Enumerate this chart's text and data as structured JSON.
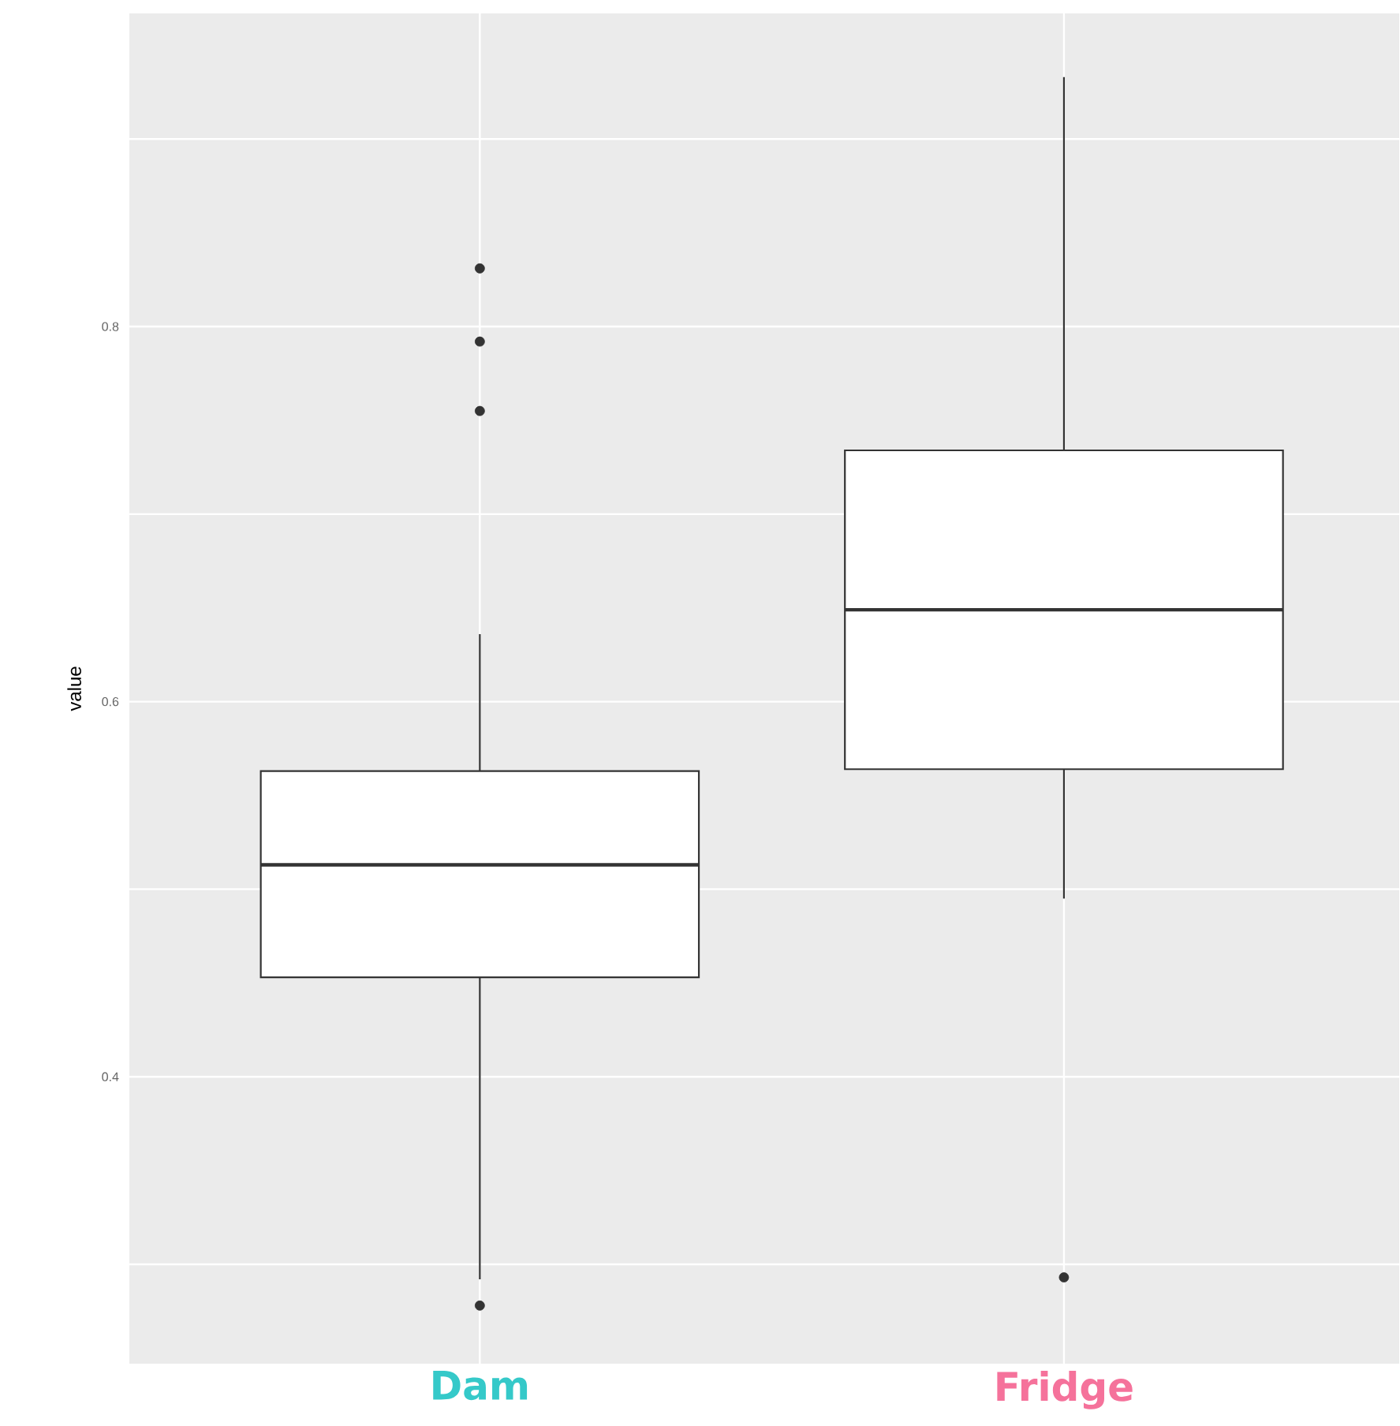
{
  "chart_data": {
    "type": "box",
    "ylabel": "value",
    "categories": [
      "Dam",
      "Fridge"
    ],
    "boxes": [
      {
        "low": 0.292,
        "q1": 0.453,
        "median": 0.513,
        "q3": 0.563,
        "high": 0.636,
        "outliers": [
          0.831,
          0.792,
          0.755,
          0.278
        ]
      },
      {
        "low": 0.495,
        "q1": 0.564,
        "median": 0.649,
        "q3": 0.734,
        "high": 0.933,
        "outliers": [
          0.293
        ]
      }
    ],
    "ylim": [
      0.247,
      0.967
    ],
    "yticks": [
      {
        "value": 0.3,
        "label": null
      },
      0.4,
      {
        "value": 0.5,
        "label": null
      },
      0.6,
      {
        "value": 0.7,
        "label": null
      },
      0.8,
      {
        "value": 0.9,
        "label": null
      }
    ],
    "grid": true
  }
}
